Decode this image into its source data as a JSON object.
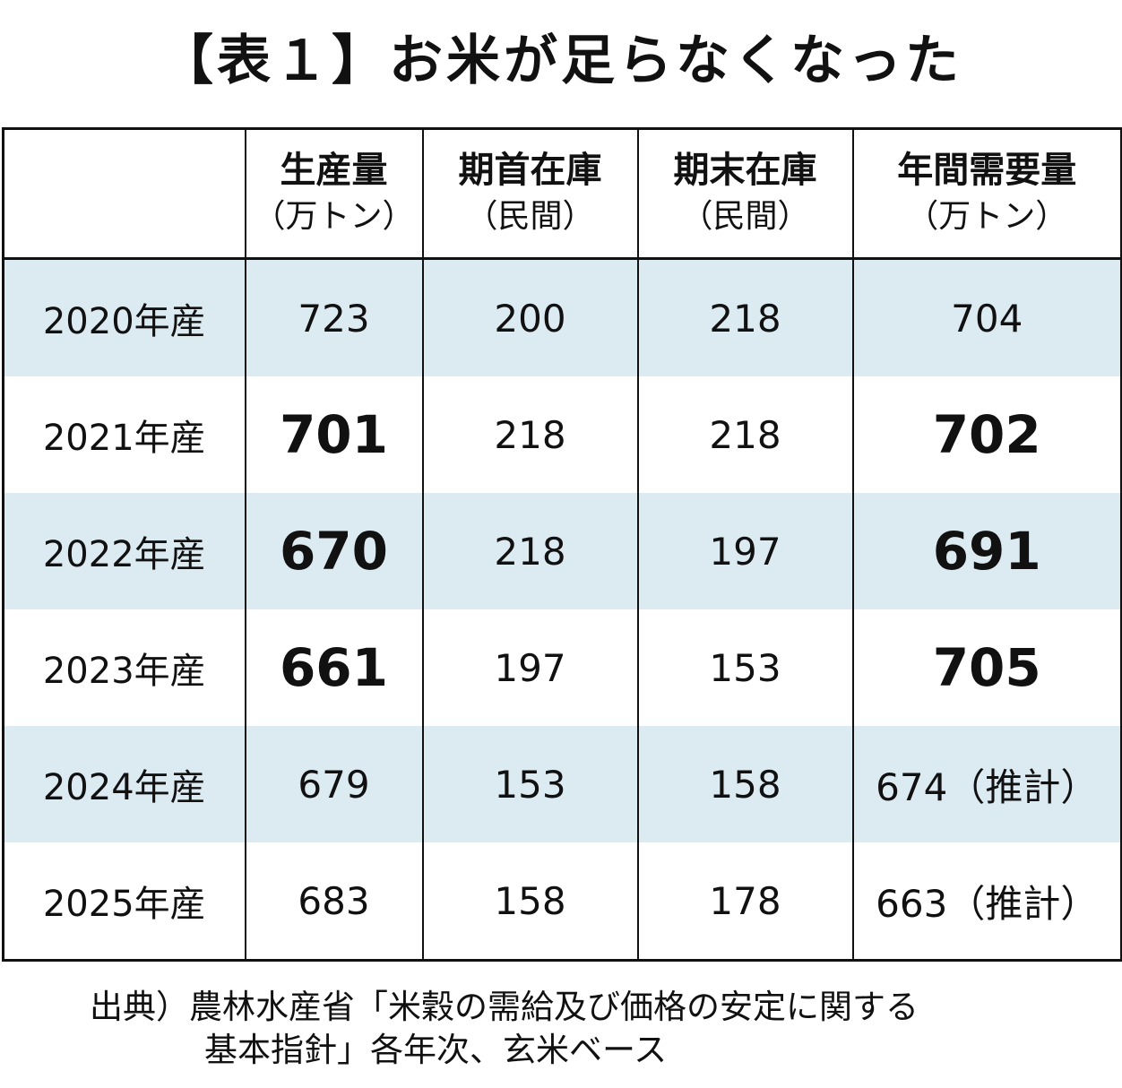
{
  "title": "【表１】お米が足らなくなった",
  "table": {
    "headers": [
      {
        "main": "",
        "sub": ""
      },
      {
        "main": "生産量",
        "sub": "（万トン）"
      },
      {
        "main": "期首在庫",
        "sub": "（民間）"
      },
      {
        "main": "期末在庫",
        "sub": "（民間）"
      },
      {
        "main": "年間需要量",
        "sub": "（万トン）"
      }
    ],
    "rows": [
      {
        "year": "2020年産",
        "production": "723",
        "stock_start": "200",
        "stock_end": "218",
        "demand": "704"
      },
      {
        "year": "2021年産",
        "production": "701",
        "stock_start": "218",
        "stock_end": "218",
        "demand": "702"
      },
      {
        "year": "2022年産",
        "production": "670",
        "stock_start": "218",
        "stock_end": "197",
        "demand": "691"
      },
      {
        "year": "2023年産",
        "production": "661",
        "stock_start": "197",
        "stock_end": "153",
        "demand": "705"
      },
      {
        "year": "2024年産",
        "production": "679",
        "stock_start": "153",
        "stock_end": "158",
        "demand": "674（推計）"
      },
      {
        "year": "2025年産",
        "production": "683",
        "stock_start": "158",
        "stock_end": "178",
        "demand": "663（推計）"
      }
    ]
  },
  "source": {
    "line1": "出典）農林水産省「米穀の需給及び価格の安定に関する",
    "line2": "基本指針」各年次、玄米ベース"
  },
  "colors": {
    "row_shade": "#dceaf2",
    "border": "#111111"
  }
}
